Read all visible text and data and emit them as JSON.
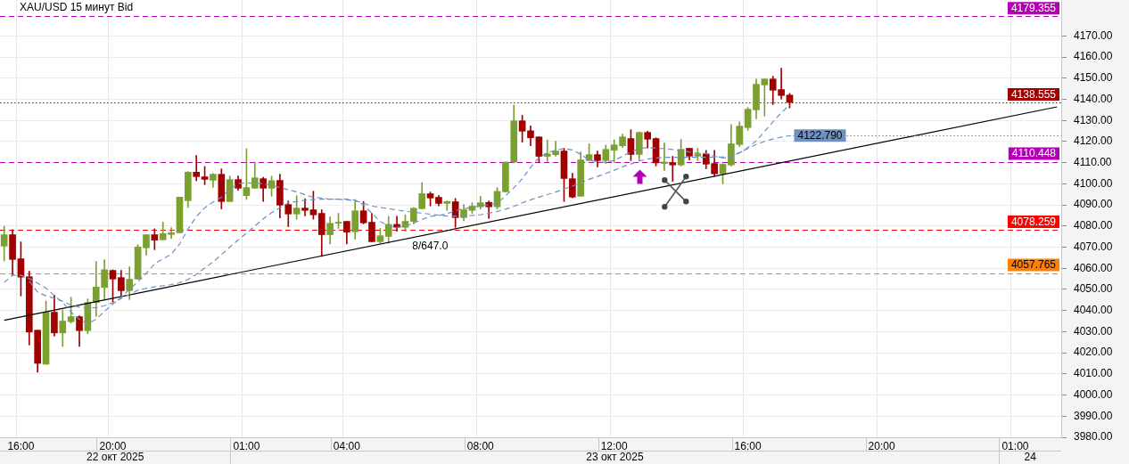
{
  "chart_data": {
    "type": "candlestick",
    "title": "XAU/USD 15 минут Bid",
    "categories": [
      null,
      null,
      "16:00",
      null,
      null,
      null,
      null,
      null,
      null,
      null,
      null,
      null,
      null,
      "20:00",
      null,
      null,
      null,
      null,
      null,
      null,
      null,
      null,
      null,
      null,
      null,
      null,
      null,
      null,
      null,
      "01:00",
      null,
      null,
      null,
      null,
      null,
      null,
      null,
      null,
      null,
      null,
      null,
      "04:00",
      null,
      null,
      null,
      null,
      null,
      null,
      null,
      null,
      null,
      null,
      null,
      null,
      null,
      null,
      null,
      "08:00",
      null,
      null,
      null,
      null,
      null,
      null,
      null,
      null,
      null,
      null,
      null,
      null,
      null,
      null,
      null,
      "12:00",
      null,
      null,
      null,
      null,
      null,
      null,
      null,
      null,
      null,
      null,
      null,
      null,
      null,
      null,
      null,
      "16:00",
      null,
      null,
      null,
      null,
      null,
      null,
      null,
      null,
      null,
      null,
      null,
      null,
      null,
      null,
      null,
      "20:00",
      null,
      null,
      null,
      null,
      null,
      null,
      null,
      null,
      null,
      null,
      null,
      null,
      null,
      null,
      null,
      "01:00",
      null,
      null,
      null,
      null,
      null
    ],
    "ohlc": [
      [
        4070.5,
        4079.9,
        4063.5,
        4075.9
      ],
      [
        4075.9,
        4078.3,
        4056.5,
        4064.2
      ],
      [
        4064.5,
        4072.5,
        4046.9,
        4055.8
      ],
      [
        4056.0,
        4058.6,
        4023.7,
        4029.8
      ],
      [
        4030.7,
        4030.7,
        4010.8,
        4015.0
      ],
      [
        4014.6,
        4044.5,
        4014.6,
        4039.2
      ],
      [
        4039.2,
        4047.3,
        4027.9,
        4029.4
      ],
      [
        4029.4,
        4040.3,
        4023.0,
        4035.0
      ],
      [
        4034.7,
        4046.3,
        4034.0,
        4037.1
      ],
      [
        4037.1,
        4037.5,
        4023.0,
        4030.5
      ],
      [
        4030.5,
        4045.5,
        4029.1,
        4043.8
      ],
      [
        4043.8,
        4063.2,
        4037.2,
        4051.1
      ],
      [
        4050.9,
        4064.1,
        4045.2,
        4059.3
      ],
      [
        4059.0,
        4059.3,
        4044.1,
        4054.9
      ],
      [
        4055.6,
        4059.0,
        4046.6,
        4049.4
      ],
      [
        4049.4,
        4060.7,
        4045.2,
        4054.8
      ],
      [
        4054.9,
        4071.2,
        4054.8,
        4070.1
      ],
      [
        4069.7,
        4075.9,
        4066.3,
        4075.9
      ],
      [
        4075.9,
        4078.7,
        4068.8,
        4073.3
      ],
      [
        4073.5,
        4081.8,
        4073.5,
        4076.4
      ],
      [
        4076.0,
        4079.2,
        4074.0,
        4076.8
      ],
      [
        4076.8,
        4093.7,
        4076.8,
        4093.7
      ],
      [
        4092.0,
        4105.8,
        4088.8,
        4105.5
      ],
      [
        4105.5,
        4113.4,
        4101.4,
        4103.4
      ],
      [
        4103.3,
        4108.2,
        4099.6,
        4102.1
      ],
      [
        4101.7,
        4104.9,
        4098.3,
        4104.5
      ],
      [
        4104.5,
        4107.1,
        4088.1,
        4091.6
      ],
      [
        4091.6,
        4103.7,
        4091.6,
        4102.0
      ],
      [
        4102.0,
        4103.7,
        4096.9,
        4097.9
      ],
      [
        4094.4,
        4116.6,
        4092.6,
        4098.2
      ],
      [
        4097.9,
        4110.3,
        4097.9,
        4102.8
      ],
      [
        4102.4,
        4103.1,
        4091.6,
        4097.9
      ],
      [
        4097.9,
        4103.6,
        4094.1,
        4101.5
      ],
      [
        4101.6,
        4104.5,
        4083.9,
        4089.9
      ],
      [
        4090.2,
        4091.9,
        4079.7,
        4085.7
      ],
      [
        4085.7,
        4094.4,
        4083.2,
        4088.5
      ],
      [
        4088.5,
        4093.0,
        4084.8,
        4087.4
      ],
      [
        4087.7,
        4096.5,
        4083.2,
        4085.3
      ],
      [
        4086.0,
        4087.7,
        4065.6,
        4075.9
      ],
      [
        4075.9,
        4084.3,
        4071.5,
        4081.3
      ],
      [
        4081.3,
        4086.0,
        4078.9,
        4081.8
      ],
      [
        4082.2,
        4082.2,
        4071.5,
        4077.1
      ],
      [
        4077.3,
        4092.6,
        4073.8,
        4087.2
      ],
      [
        4087.2,
        4091.6,
        4081.0,
        4081.5
      ],
      [
        4081.8,
        4086.0,
        4072.6,
        4072.6
      ],
      [
        4072.6,
        4078.9,
        4071.9,
        4075.4
      ],
      [
        4075.1,
        4084.6,
        4071.9,
        4080.8
      ],
      [
        4080.8,
        4084.6,
        4077.5,
        4079.4
      ],
      [
        4079.4,
        4085.3,
        4077.5,
        4082.2
      ],
      [
        4082.2,
        4088.8,
        4081.0,
        4088.4
      ],
      [
        4088.2,
        4100.6,
        4088.2,
        4095.3
      ],
      [
        4095.3,
        4096.1,
        4089.5,
        4093.3
      ],
      [
        4093.6,
        4094.4,
        4089.5,
        4090.7
      ],
      [
        4090.7,
        4091.9,
        4087.4,
        4091.6
      ],
      [
        4091.5,
        4093.0,
        4079.4,
        4084.0
      ],
      [
        4084.0,
        4090.2,
        4082.5,
        4087.7
      ],
      [
        4087.4,
        4091.0,
        4086.0,
        4089.4
      ],
      [
        4089.1,
        4094.0,
        4088.1,
        4091.0
      ],
      [
        4091.2,
        4091.9,
        4083.6,
        4089.1
      ],
      [
        4089.1,
        4098.2,
        4088.1,
        4096.4
      ],
      [
        4096.2,
        4110.3,
        4096.2,
        4110.3
      ],
      [
        4110.3,
        4137.3,
        4109.9,
        4129.8
      ],
      [
        4129.8,
        4132.4,
        4119.7,
        4124.9
      ],
      [
        4125.1,
        4127.4,
        4118.0,
        4121.8
      ],
      [
        4122.2,
        4122.2,
        4110.1,
        4113.0
      ],
      [
        4113.0,
        4120.8,
        4110.6,
        4114.2
      ],
      [
        4113.8,
        4120.1,
        4113.0,
        4115.5
      ],
      [
        4115.5,
        4116.8,
        4091.6,
        4102.5
      ],
      [
        4102.4,
        4105.0,
        4093.3,
        4093.7
      ],
      [
        4094.1,
        4115.1,
        4094.1,
        4111.3
      ],
      [
        4111.0,
        4118.9,
        4111.0,
        4113.8
      ],
      [
        4113.8,
        4115.5,
        4108.0,
        4111.0
      ],
      [
        4111.0,
        4118.3,
        4109.6,
        4116.3
      ],
      [
        4115.9,
        4120.8,
        4110.1,
        4118.4
      ],
      [
        4118.0,
        4123.5,
        4117.2,
        4122.2
      ],
      [
        4121.4,
        4125.6,
        4111.0,
        4113.9
      ],
      [
        4113.9,
        4124.6,
        4111.0,
        4124.3
      ],
      [
        4124.3,
        4124.9,
        4116.9,
        4121.1
      ],
      [
        4121.4,
        4121.8,
        4108.4,
        4109.9
      ],
      [
        4109.6,
        4119.3,
        4106.3,
        4110.3
      ],
      [
        4110.0,
        4113.0,
        4101.2,
        4108.9
      ],
      [
        4108.9,
        4121.0,
        4108.4,
        4116.3
      ],
      [
        4116.8,
        4116.8,
        4111.3,
        4113.1
      ],
      [
        4113.1,
        4116.8,
        4111.0,
        4114.2
      ],
      [
        4114.2,
        4115.8,
        4107.1,
        4109.3
      ],
      [
        4109.6,
        4115.8,
        4103.6,
        4104.7
      ],
      [
        4104.7,
        4109.6,
        4100.0,
        4109.2
      ],
      [
        4108.9,
        4128.1,
        4108.4,
        4118.9
      ],
      [
        4118.6,
        4129.3,
        4117.6,
        4127.3
      ],
      [
        4126.6,
        4136.1,
        4125.3,
        4135.3
      ],
      [
        4135.0,
        4149.6,
        4130.7,
        4147.1
      ],
      [
        4146.8,
        4149.6,
        4132.1,
        4149.6
      ],
      [
        4149.6,
        4150.9,
        4137.5,
        4144.3
      ],
      [
        4144.6,
        4154.7,
        4140.1,
        4141.8
      ],
      [
        4142.0,
        4142.8,
        4135.9,
        4138.5
      ],
      null,
      null,
      null,
      null,
      null,
      null,
      null,
      null,
      null,
      null,
      null,
      null,
      null,
      null,
      null,
      null,
      null,
      null,
      null,
      null,
      null,
      null,
      null,
      null,
      null,
      null,
      null,
      null,
      null,
      null,
      null,
      null
    ],
    "colors": [
      "#7aa030",
      "#a00000",
      "#a00000",
      "#a00000",
      "#a00000",
      "#7aa030",
      "#a00000",
      "#7aa030",
      "#7aa030",
      "#a00000",
      "#7aa030",
      "#7aa030",
      "#7aa030",
      "#a00000",
      "#a00000",
      "#7aa030",
      "#7aa030",
      "#7aa030",
      "#a00000",
      "#7aa030",
      "#7aa030",
      "#7aa030",
      "#7aa030",
      "#a00000",
      "#a00000",
      "#7aa030",
      "#a00000",
      "#7aa030",
      "#a00000",
      "#7aa030",
      "#7aa030",
      "#a00000",
      "#7aa030",
      "#a00000",
      "#a00000",
      "#7aa030",
      "#a00000",
      "#a00000",
      "#a00000",
      "#7aa030",
      "#7aa030",
      "#a00000",
      "#7aa030",
      "#a00000",
      "#a00000",
      "#7aa030",
      "#7aa030",
      "#a00000",
      "#7aa030",
      "#7aa030",
      "#7aa030",
      "#a00000",
      "#a00000",
      "#7aa030",
      "#a00000",
      "#7aa030",
      "#7aa030",
      "#7aa030",
      "#a00000",
      "#7aa030",
      "#7aa030",
      "#7aa030",
      "#a00000",
      "#a00000",
      "#a00000",
      "#7aa030",
      "#7aa030",
      "#a00000",
      "#a00000",
      "#7aa030",
      "#7aa030",
      "#a00000",
      "#7aa030",
      "#7aa030",
      "#7aa030",
      "#a00000",
      "#7aa030",
      "#a00000",
      "#a00000",
      "#7aa030",
      "#a00000",
      "#7aa030",
      "#a00000",
      "#7aa030",
      "#a00000",
      "#a00000",
      "#7aa030",
      "#7aa030",
      "#7aa030",
      "#7aa030",
      "#7aa030",
      "#7aa030",
      "#a00000",
      "#a00000",
      "#a00000",
      null,
      null,
      null,
      null,
      null,
      null,
      null,
      null,
      null,
      null,
      null,
      null,
      null,
      null,
      null,
      null,
      null,
      null,
      null,
      null,
      null,
      null,
      null,
      null,
      null,
      null,
      null,
      null,
      null,
      null,
      null,
      null
    ],
    "series": [
      {
        "type": "line",
        "color": "#6f8fc6",
        "line_style": "dashed",
        "values": [
          4053.3,
          4056.7,
          4056.7,
          4055.2,
          4052.9,
          4050.6,
          4047.1,
          4043.9,
          4039.2,
          4035.9,
          4033.7,
          4035.9,
          4039.6,
          4043.0,
          4046.3,
          4050.0,
          4053.6,
          4057.6,
          4062.1,
          4064.5,
          4066.7,
          4071.5,
          4078.6,
          4084.5,
          4088.6,
          4091.4,
          4093.6,
          4097.5,
          4100.1,
          4100.5,
          4100.3,
          4100.1,
          4099.4,
          4098.2,
          4097.2,
          4096.2,
          4094.8,
          4093.6,
          4093.2,
          4092.7,
          4092.7,
          4092.7,
          4092.2,
          4090.0,
          4086.1,
          4082.1,
          4080.0,
          4079.4,
          4079.9,
          4081.4,
          4083.1,
          4084.6,
          4085.0,
          4085.8,
          4087.3,
          4088.2,
          4088.9,
          4089.5,
          4090.1,
          4090.8,
          4094.3,
          4098.1,
          4102.4,
          4107.8,
          4112.4,
          4114.7,
          4115.9,
          4116.7,
          4116.0,
          4113.9,
          4111.2,
          4110.4,
          4110.1,
          4111.1,
          4113.0,
          4115.1,
          4116.7,
          4117.1,
          4116.9,
          4116.6,
          4116.2,
          4115.7,
          4115.1,
          4114.6,
          4114.3,
          4113.0,
          4112.2,
          4112.5,
          4114.6,
          4117.2,
          4120.3,
          4124.8,
          4129.3,
          4133.6,
          4137.3,
          null,
          null,
          null,
          null,
          null,
          null,
          null,
          null,
          null,
          null,
          null,
          null,
          null,
          null,
          null,
          null,
          null,
          null,
          null,
          null,
          null,
          null,
          null,
          null,
          null,
          null,
          null,
          null,
          null,
          null,
          null,
          null
        ]
      },
      {
        "type": "line",
        "color": "#7090c0",
        "line_style": "dashed",
        "values": [
          null,
          null,
          null,
          4053.9,
          4048.7,
          4047.0,
          4045.8,
          4044.4,
          4042.5,
          4041.6,
          4041.1,
          4041.4,
          4042.3,
          4043.7,
          4045.7,
          4047.7,
          4049.6,
          4050.5,
          4051.2,
          4051.7,
          4052.3,
          4053.2,
          4054.7,
          4057.2,
          4060.1,
          4063.1,
          4066.5,
          4070.0,
          4073.4,
          4076.6,
          4080.0,
          4083.4,
          4086.3,
          4088.7,
          4091.0,
          4091.6,
          4092.2,
          4092.5,
          4092.7,
          4092.7,
          4092.7,
          4092.4,
          4092.0,
          4090.8,
          4089.4,
          4088.8,
          4088.2,
          4087.6,
          4087.0,
          4086.5,
          4086.1,
          4085.6,
          4085.1,
          4084.7,
          4084.7,
          4084.8,
          4085.0,
          4085.3,
          4086.1,
          4086.9,
          4088.0,
          4089.3,
          4091.0,
          4092.4,
          4093.7,
          4094.9,
          4096.1,
          4097.5,
          4098.9,
          4100.5,
          4102.1,
          4103.5,
          4104.9,
          4106.4,
          4108.0,
          4109.4,
          4110.8,
          4111.7,
          4112.2,
          4112.5,
          4112.5,
          4112.5,
          4112.5,
          4112.5,
          4112.5,
          4112.6,
          4112.7,
          4113.0,
          4114.8,
          4116.7,
          4118.6,
          4120.1,
          4121.2,
          4122.1,
          4122.79,
          null,
          null,
          null,
          null,
          null,
          null,
          null,
          null,
          null,
          null,
          null,
          null,
          null,
          null,
          null,
          null,
          null,
          null,
          null,
          null,
          null,
          null,
          null,
          null,
          null,
          null,
          null,
          null,
          null,
          null,
          null,
          null
        ],
        "value_labels": [
          null,
          null,
          null,
          null,
          null,
          null,
          null,
          null,
          null,
          null,
          null,
          null,
          null,
          null,
          null,
          null,
          null,
          null,
          null,
          null,
          null,
          null,
          null,
          null,
          null,
          null,
          null,
          null,
          null,
          null,
          null,
          null,
          null,
          null,
          null,
          null,
          null,
          null,
          null,
          null,
          null,
          null,
          null,
          null,
          null,
          null,
          null,
          null,
          null,
          null,
          null,
          null,
          null,
          null,
          null,
          null,
          null,
          null,
          null,
          null,
          null,
          null,
          null,
          null,
          null,
          null,
          null,
          null,
          null,
          null,
          null,
          null,
          null,
          null,
          null,
          null,
          null,
          null,
          null,
          null,
          null,
          null,
          null,
          null,
          null,
          null,
          null,
          null,
          null,
          null,
          null,
          null,
          null,
          null,
          "4122.790",
          null,
          null,
          null,
          null,
          null,
          null,
          null,
          null,
          null,
          null,
          null,
          null,
          null,
          null,
          null,
          null,
          null,
          null,
          null,
          null,
          null,
          null,
          null,
          null,
          null,
          null,
          null,
          null,
          null,
          null,
          null,
          null
        ]
      },
      {
        "type": "line",
        "color": "#000000",
        "line_style": "solid",
        "values": [
          4035.4,
          null,
          null,
          null,
          null,
          null,
          null,
          null,
          null,
          null,
          null,
          null,
          null,
          null,
          null,
          null,
          null,
          null,
          null,
          null,
          null,
          null,
          null,
          null,
          null,
          null,
          null,
          null,
          null,
          null,
          null,
          null,
          null,
          null,
          null,
          null,
          null,
          null,
          null,
          null,
          null,
          null,
          null,
          null,
          null,
          null,
          null,
          null,
          null,
          null,
          null,
          null,
          null,
          null,
          null,
          null,
          null,
          null,
          null,
          null,
          null,
          null,
          null,
          null,
          null,
          null,
          null,
          null,
          null,
          null,
          null,
          null,
          null,
          null,
          null,
          null,
          null,
          null,
          null,
          null,
          null,
          null,
          null,
          null,
          null,
          null,
          null,
          null,
          null,
          null,
          null,
          null,
          null,
          null,
          null,
          null,
          null,
          null,
          null,
          null,
          null,
          null,
          null,
          null,
          null,
          null,
          null,
          null,
          null,
          null,
          null,
          null,
          null,
          null,
          null,
          null,
          null,
          null,
          null,
          null,
          null,
          null,
          null,
          null,
          null,
          null,
          4136.4
        ]
      }
    ],
    "ylim": [
      3980,
      4187
    ],
    "yticks": [
      {
        "value": 3980,
        "label": "3980.00"
      },
      {
        "value": 3990,
        "label": "3990.00"
      },
      {
        "value": 4000,
        "label": "4000.00"
      },
      {
        "value": 4010,
        "label": "4010.00"
      },
      {
        "value": 4020,
        "label": "4020.00"
      },
      {
        "value": 4030,
        "label": "4030.00"
      },
      {
        "value": 4040,
        "label": "4040.00"
      },
      {
        "value": 4050,
        "label": "4050.00"
      },
      {
        "value": 4060,
        "label": "4060.00"
      },
      {
        "value": 4070,
        "label": "4070.00"
      },
      {
        "value": 4080,
        "label": "4080.00"
      },
      {
        "value": 4090,
        "label": "4090.00"
      },
      {
        "value": 4100,
        "label": "4100.00"
      },
      {
        "value": 4110,
        "label": "4110.00"
      },
      {
        "value": 4120,
        "label": "4120.00"
      },
      {
        "value": 4130,
        "label": "4130.00"
      },
      {
        "value": 4140,
        "label": "4140.00"
      },
      {
        "value": 4150,
        "label": "4150.00"
      },
      {
        "value": 4160,
        "label": "4160.00"
      },
      {
        "value": 4170,
        "label": "4170.00"
      }
    ],
    "grid": true,
    "ref_lines": [
      {
        "axis": "y",
        "value": 4179.355,
        "label": "4179.355",
        "color": "#b400b4",
        "line_style": "dashed"
      },
      {
        "axis": "y",
        "value": 4138.555,
        "label": "4138.555",
        "color": "#a00000",
        "line_style": "dotted"
      },
      {
        "axis": "y",
        "value": 4110.448,
        "label": "4110.448",
        "color": "#b400b4",
        "line_style": "dashed"
      },
      {
        "axis": "y",
        "value": 4078.259,
        "label": "4078.259",
        "color": "#ff0000",
        "line_style": "dashed"
      },
      {
        "axis": "y",
        "value": 4057.765,
        "label": "4057.765",
        "color": "#ff8000",
        "line_style": "dashed"
      }
    ],
    "annotations": [
      "8/647.0",
      "22 окт 2025",
      "23 окт 2025",
      "24"
    ]
  }
}
